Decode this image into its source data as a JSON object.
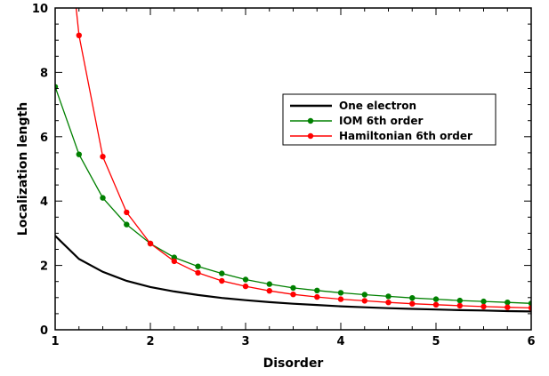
{
  "chart_data": {
    "type": "line",
    "title": "",
    "xlabel": "Disorder",
    "ylabel": "Localization length",
    "xlim": [
      1,
      6
    ],
    "ylim": [
      0,
      10
    ],
    "xticks": [
      1,
      2,
      3,
      4,
      5,
      6
    ],
    "yticks": [
      0,
      2,
      4,
      6,
      8,
      10
    ],
    "grid": false,
    "legend_position": "center-right",
    "series": [
      {
        "name": "One electron",
        "color": "#000000",
        "markers": false,
        "x": [
          1,
          1.25,
          1.5,
          1.75,
          2,
          2.25,
          2.5,
          2.75,
          3,
          3.25,
          3.5,
          3.75,
          4,
          4.25,
          4.5,
          4.75,
          5,
          5.25,
          5.5,
          5.75,
          6
        ],
        "y": [
          2.92,
          2.2,
          1.8,
          1.52,
          1.33,
          1.19,
          1.08,
          0.99,
          0.92,
          0.86,
          0.81,
          0.77,
          0.73,
          0.7,
          0.67,
          0.65,
          0.63,
          0.61,
          0.6,
          0.58,
          0.57
        ]
      },
      {
        "name": "IOM 6th order",
        "color": "#008000",
        "markers": true,
        "x": [
          1,
          1.25,
          1.5,
          1.75,
          2,
          2.25,
          2.5,
          2.75,
          3,
          3.25,
          3.5,
          3.75,
          4,
          4.25,
          4.5,
          4.75,
          5,
          5.25,
          5.5,
          5.75,
          6
        ],
        "y": [
          7.55,
          5.45,
          4.1,
          3.27,
          2.68,
          2.25,
          1.97,
          1.75,
          1.56,
          1.42,
          1.3,
          1.22,
          1.15,
          1.09,
          1.04,
          0.99,
          0.95,
          0.91,
          0.88,
          0.85,
          0.82
        ]
      },
      {
        "name": "Hamiltonian 6th order",
        "color": "#ff0000",
        "markers": true,
        "x": [
          1.25,
          1.5,
          1.75,
          2,
          2.25,
          2.5,
          2.75,
          3,
          3.25,
          3.5,
          3.75,
          4,
          4.25,
          4.5,
          4.75,
          5,
          5.25,
          5.5,
          5.75,
          6
        ],
        "y": [
          9.15,
          5.38,
          3.65,
          2.68,
          2.13,
          1.77,
          1.52,
          1.35,
          1.21,
          1.1,
          1.02,
          0.95,
          0.9,
          0.85,
          0.81,
          0.78,
          0.75,
          0.72,
          0.7,
          0.68
        ],
        "leading_segment": {
          "x": [
            1.15,
            1.25
          ],
          "y": [
            12,
            9.15
          ]
        }
      }
    ]
  }
}
